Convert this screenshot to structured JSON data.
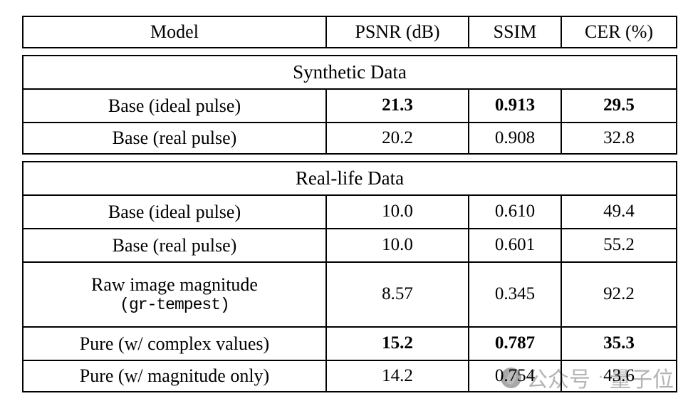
{
  "table": {
    "columns": {
      "model": "Model",
      "psnr": "PSNR (dB)",
      "ssim": "SSIM",
      "cer": "CER (%)"
    },
    "sections": [
      {
        "title": "Synthetic Data",
        "rows": [
          {
            "model": "Base (ideal pulse)",
            "psnr": "21.3",
            "ssim": "0.913",
            "cer": "29.5",
            "bold": true
          },
          {
            "model": "Base (real pulse)",
            "psnr": "20.2",
            "ssim": "0.908",
            "cer": "32.8",
            "bold": false
          }
        ]
      },
      {
        "title": "Real-life Data",
        "rows": [
          {
            "model": "Base (ideal pulse)",
            "psnr": "10.0",
            "ssim": "0.610",
            "cer": "49.4",
            "bold": false
          },
          {
            "model": "Base (real pulse)",
            "psnr": "10.0",
            "ssim": "0.601",
            "cer": "55.2",
            "bold": false
          },
          {
            "model_line1": "Raw image magnitude",
            "model_line2": "(gr-tempest)",
            "psnr": "8.57",
            "ssim": "0.345",
            "cer": "92.2",
            "bold": false
          },
          {
            "model": "Pure (w/ complex values)",
            "psnr": "15.2",
            "ssim": "0.787",
            "cer": "35.3",
            "bold": true
          },
          {
            "model": "Pure (w/ magnitude only)",
            "psnr": "14.2",
            "ssim": "0.754",
            "cer": "43.6",
            "bold": false
          }
        ]
      }
    ]
  },
  "watermark": {
    "label": "公众号",
    "dot": "·",
    "brand": "量子位",
    "color": "#b3b3b3"
  }
}
